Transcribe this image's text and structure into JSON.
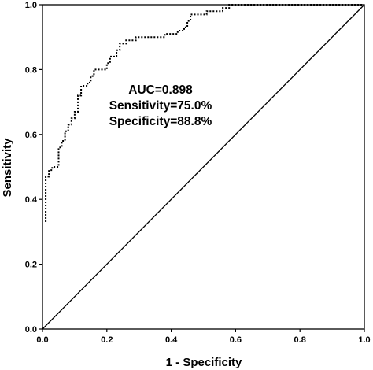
{
  "chart_data": {
    "type": "line",
    "xlabel": "1 - Specificity",
    "ylabel": "Sensitivity",
    "xlim": [
      0,
      1
    ],
    "ylim": [
      0,
      1
    ],
    "xticks": [
      "0.0",
      "0.2",
      "0.4",
      "0.6",
      "0.8",
      "1.0"
    ],
    "yticks": [
      "0.0",
      "0.2",
      "0.4",
      "0.6",
      "0.8",
      "1.0"
    ],
    "grid": false,
    "annotations": [
      "AUC=0.898",
      "Sensitivity=75.0%",
      "Specificity=88.8%"
    ],
    "series": [
      {
        "style": "dotted-step",
        "color": "#000000",
        "points": [
          [
            0.01,
            0.33
          ],
          [
            0.01,
            0.47
          ],
          [
            0.02,
            0.47
          ],
          [
            0.02,
            0.49
          ],
          [
            0.03,
            0.49
          ],
          [
            0.03,
            0.5
          ],
          [
            0.05,
            0.5
          ],
          [
            0.05,
            0.56
          ],
          [
            0.06,
            0.56
          ],
          [
            0.06,
            0.58
          ],
          [
            0.07,
            0.58
          ],
          [
            0.07,
            0.61
          ],
          [
            0.08,
            0.61
          ],
          [
            0.08,
            0.63
          ],
          [
            0.09,
            0.63
          ],
          [
            0.09,
            0.65
          ],
          [
            0.1,
            0.65
          ],
          [
            0.1,
            0.67
          ],
          [
            0.11,
            0.67
          ],
          [
            0.11,
            0.72
          ],
          [
            0.12,
            0.72
          ],
          [
            0.12,
            0.75
          ],
          [
            0.14,
            0.75
          ],
          [
            0.14,
            0.76
          ],
          [
            0.15,
            0.76
          ],
          [
            0.15,
            0.78
          ],
          [
            0.16,
            0.78
          ],
          [
            0.16,
            0.8
          ],
          [
            0.2,
            0.8
          ],
          [
            0.2,
            0.82
          ],
          [
            0.21,
            0.82
          ],
          [
            0.21,
            0.84
          ],
          [
            0.23,
            0.84
          ],
          [
            0.23,
            0.86
          ],
          [
            0.24,
            0.86
          ],
          [
            0.24,
            0.88
          ],
          [
            0.26,
            0.88
          ],
          [
            0.26,
            0.89
          ],
          [
            0.29,
            0.89
          ],
          [
            0.29,
            0.9
          ],
          [
            0.38,
            0.9
          ],
          [
            0.38,
            0.91
          ],
          [
            0.42,
            0.91
          ],
          [
            0.42,
            0.92
          ],
          [
            0.44,
            0.92
          ],
          [
            0.44,
            0.93
          ],
          [
            0.45,
            0.93
          ],
          [
            0.45,
            0.95
          ],
          [
            0.46,
            0.95
          ],
          [
            0.46,
            0.97
          ],
          [
            0.51,
            0.97
          ],
          [
            0.51,
            0.98
          ],
          [
            0.56,
            0.98
          ],
          [
            0.56,
            0.99
          ],
          [
            0.58,
            0.99
          ],
          [
            0.58,
            1.0
          ],
          [
            1.0,
            1.0
          ]
        ]
      },
      {
        "style": "solid",
        "color": "#000000",
        "points": [
          [
            0,
            0
          ],
          [
            1,
            1
          ]
        ]
      }
    ]
  }
}
